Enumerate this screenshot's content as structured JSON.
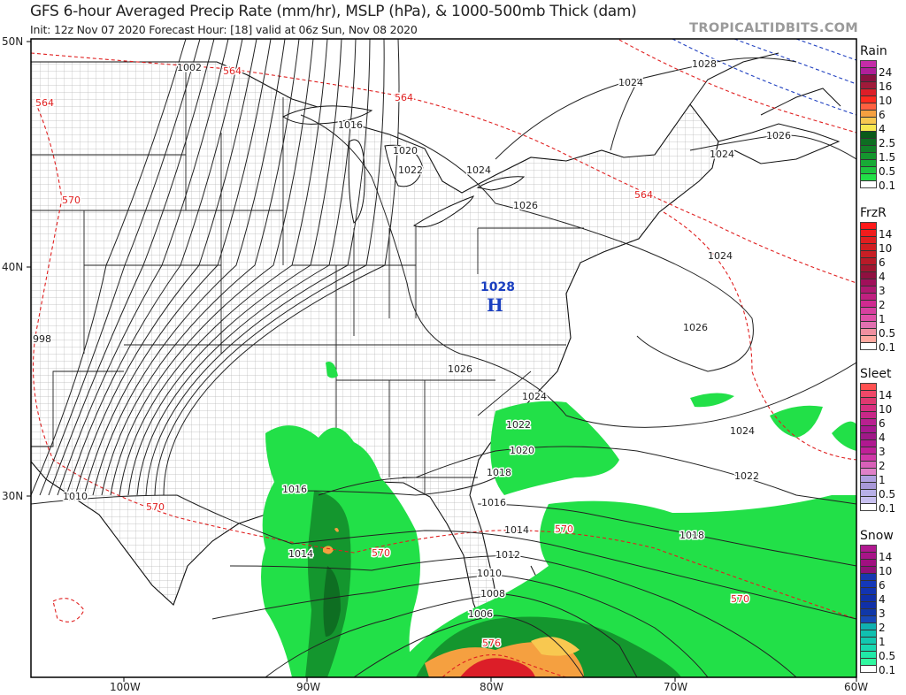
{
  "header": {
    "title": "GFS 6-hour Averaged Precip Rate (mm/hr), MSLP (hPa), & 1000-500mb Thick (dam)",
    "subtitle": "Init: 12z Nov 07 2020   Forecast Hour: [18]   valid at 06z Sun, Nov 08 2020",
    "watermark": "TROPICALTIDBITS.COM"
  },
  "axes": {
    "lat_labels": [
      "50N",
      "40N",
      "30N"
    ],
    "lon_labels": [
      "100W",
      "90W",
      "80W",
      "70W",
      "60W"
    ]
  },
  "high_pressure": {
    "value": "1028",
    "symbol": "H",
    "color": "#1a3fc0"
  },
  "isobar_labels": [
    "1002",
    "1016",
    "1020",
    "1022",
    "1024",
    "1028",
    "1024",
    "1026",
    "1024",
    "1026",
    "1024",
    "1026",
    "1026",
    "1024",
    "1022",
    "1024",
    "1020",
    "1018",
    "1022",
    "1016",
    "1010",
    "1016",
    "1014",
    "1018",
    "1014",
    "1012",
    "1010",
    "1008",
    "1006",
    "998"
  ],
  "thickness_labels": [
    "564",
    "564",
    "564",
    "564",
    "570",
    "570",
    "570",
    "570",
    "570",
    "576"
  ],
  "colors": {
    "isobar": "#222222",
    "thickness_warm": "#e02020",
    "thickness_cold": "#2040c0",
    "rain_light": "#22e048",
    "rain_mid": "#14962e",
    "rain_heavy": "#0a5a1a"
  },
  "legends": [
    {
      "title": "Rain",
      "colors": [
        "#c42ca8",
        "#b01f9a",
        "#8a1240",
        "#a01a3a",
        "#dc1e28",
        "#ff2a1e",
        "#ff6040",
        "#f5a040",
        "#f8c850",
        "#f8e850",
        "#0a5a1a",
        "#0e6e22",
        "#118028",
        "#14962e",
        "#18aa36",
        "#1cc43e",
        "#22e048",
        "#ffffff"
      ],
      "labels": [
        "24",
        "16",
        "10",
        "6",
        "4",
        "2.5",
        "1.5",
        "0.5",
        "0.1"
      ]
    },
    {
      "title": "FrzR",
      "colors": [
        "#ff1a1a",
        "#f01c1c",
        "#e01e20",
        "#d01e22",
        "#c81e24",
        "#b81a28",
        "#a01630",
        "#901040",
        "#a0105a",
        "#b01870",
        "#c02080",
        "#d02a90",
        "#d840a0",
        "#e050a8",
        "#e070b0",
        "#f090a0",
        "#ffa8a0",
        "#ffffff"
      ],
      "labels": [
        "14",
        "10",
        "6",
        "4",
        "3",
        "2",
        "1",
        "0.5",
        "0.1"
      ]
    },
    {
      "title": "Sleet",
      "colors": [
        "#ff5050",
        "#f04868",
        "#e03870",
        "#d83080",
        "#c82888",
        "#b82090",
        "#a81890",
        "#a01888",
        "#b01890",
        "#c02098",
        "#d038a8",
        "#d860b8",
        "#e080c8",
        "#b0a0e0",
        "#a898d8",
        "#b8b0e8",
        "#c8c0f0",
        "#ffffff"
      ],
      "labels": [
        "14",
        "10",
        "6",
        "4",
        "3",
        "2",
        "1",
        "0.5",
        "0.1"
      ]
    },
    {
      "title": "Snow",
      "colors": [
        "#b01890",
        "#a81488",
        "#a01080",
        "#901078",
        "#1838b0",
        "#1438b8",
        "#1234b0",
        "#1030a8",
        "#1030a8",
        "#1038a8",
        "#1848b8",
        "#10b0b0",
        "#10c0b0",
        "#12c8b0",
        "#18d8b0",
        "#20e8a8",
        "#30f8a0",
        "#ffffff"
      ],
      "labels": [
        "14",
        "10",
        "6",
        "4",
        "3",
        "2",
        "1",
        "0.5",
        "0.1"
      ]
    }
  ]
}
